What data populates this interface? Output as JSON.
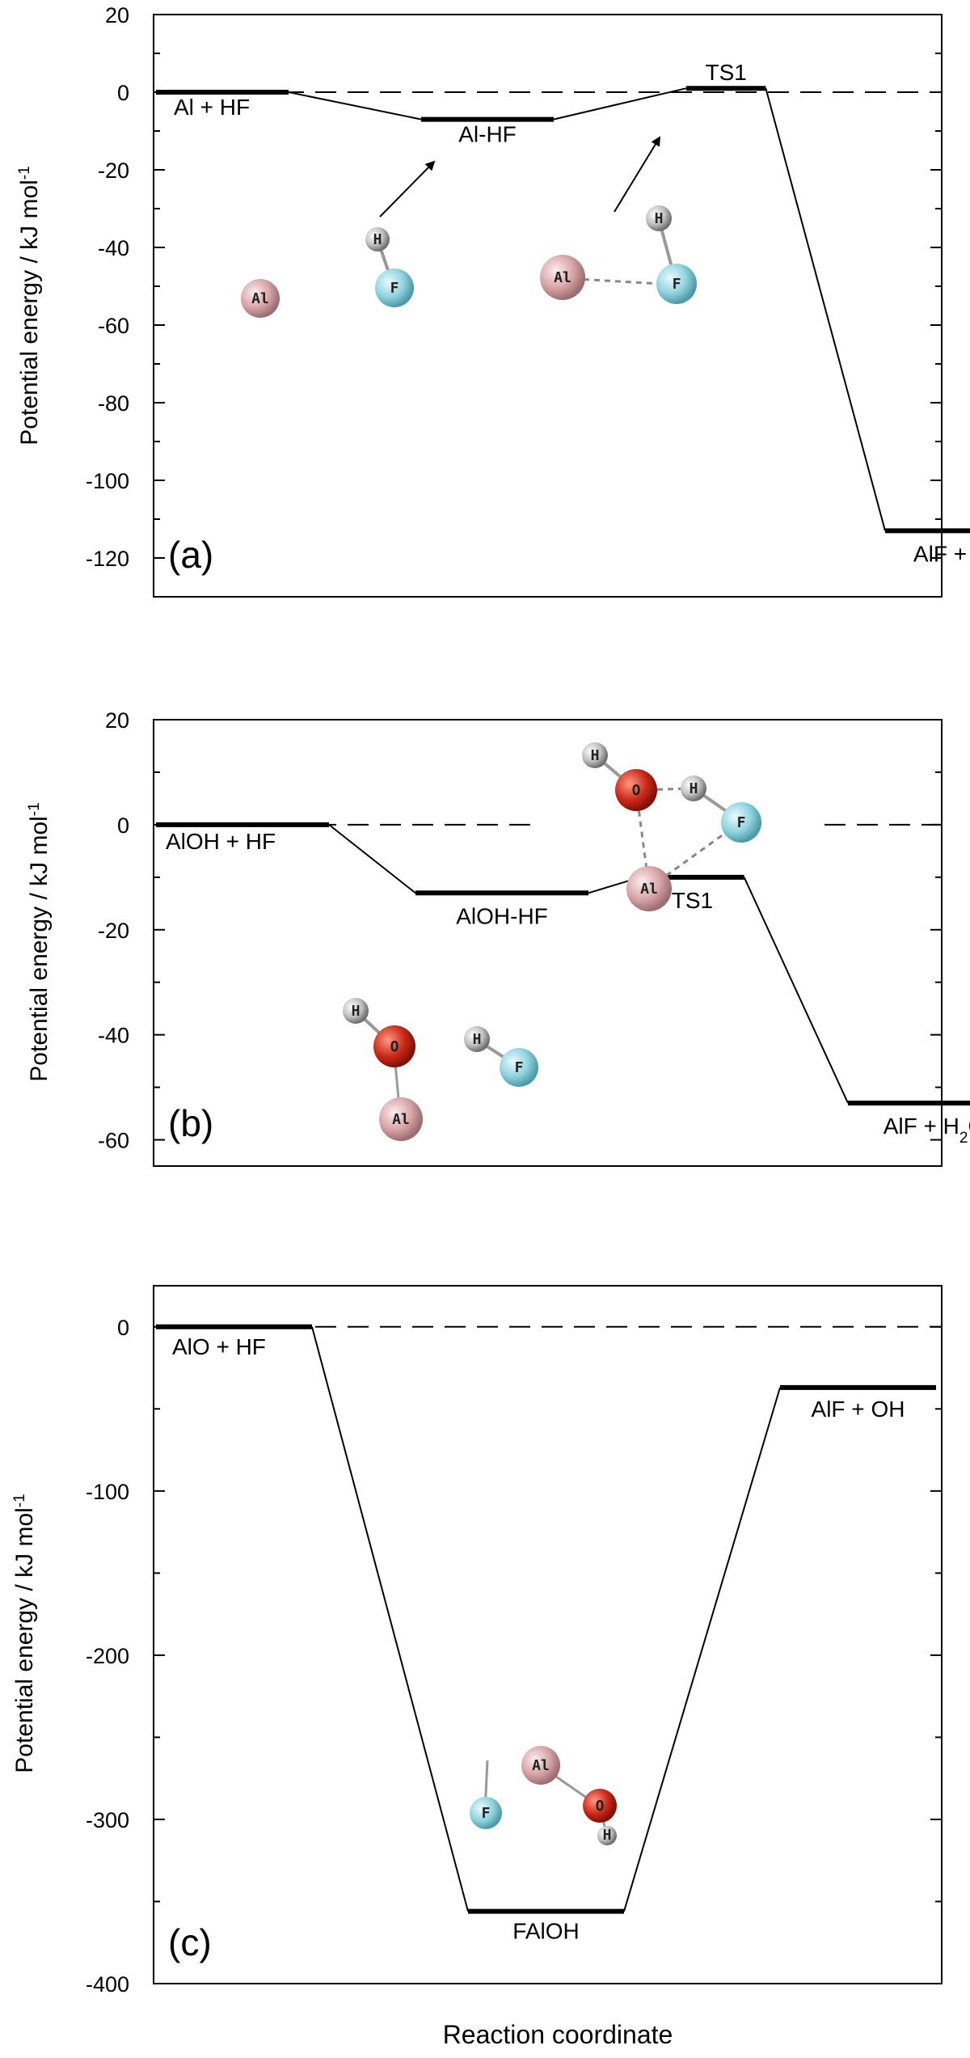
{
  "chart_data": [
    {
      "type": "line",
      "panel_label": "(a)",
      "ylabel": "Potential energy / kJ mol",
      "ylabel_superscript": "-1",
      "ylim": [
        -130,
        20
      ],
      "yticks": [
        20,
        0,
        -20,
        -40,
        -60,
        -80,
        -100,
        -120
      ],
      "reference_line": 0,
      "states": [
        {
          "label": "Al + HF",
          "energy": 0,
          "x": [
            0,
            1
          ]
        },
        {
          "label": "Al-HF",
          "energy": -7,
          "x": [
            2,
            3
          ]
        },
        {
          "label": "TS1",
          "energy": 1,
          "x": [
            4,
            4.6
          ]
        },
        {
          "label": "AlF + H",
          "energy": -113,
          "x": [
            5.5,
            6.5
          ]
        }
      ],
      "atoms": [
        {
          "el": "Al",
          "text": "Al",
          "color": "#d8a4a7"
        },
        {
          "el": "H",
          "text": "H",
          "color": "#bfbfbf"
        },
        {
          "el": "F",
          "text": "F",
          "color": "#8fd3df"
        },
        {
          "el": "Al",
          "text": "Al",
          "color": "#d8a4a7"
        },
        {
          "el": "H",
          "text": "H",
          "color": "#bfbfbf"
        },
        {
          "el": "F",
          "text": "F",
          "color": "#8fd3df"
        }
      ]
    },
    {
      "type": "line",
      "panel_label": "(b)",
      "ylabel": "Potential energy / kJ mol",
      "ylabel_superscript": "-1",
      "ylim": [
        -65,
        20
      ],
      "yticks": [
        20,
        0,
        -20,
        -40,
        -60
      ],
      "reference_line": 0,
      "states": [
        {
          "label": "AlOH + HF",
          "label_sub": "",
          "energy": 0,
          "x": [
            0,
            1
          ]
        },
        {
          "label": "AlOH-HF",
          "label_sub": "",
          "energy": -13,
          "x": [
            1.5,
            2.5
          ]
        },
        {
          "label": "TS1",
          "label_sub": "",
          "energy": -10,
          "x": [
            2.8,
            3.4
          ]
        },
        {
          "label": "AlF + H",
          "label_sub": "2",
          "label_tail": "O",
          "energy": -53,
          "x": [
            4,
            5
          ]
        }
      ],
      "atoms": [
        {
          "el": "H",
          "text": "H",
          "color": "#bfbfbf"
        },
        {
          "el": "O",
          "text": "O",
          "color": "#cc2a1a"
        },
        {
          "el": "H",
          "text": "H",
          "color": "#bfbfbf"
        },
        {
          "el": "F",
          "text": "F",
          "color": "#8fd3df"
        },
        {
          "el": "Al",
          "text": "Al",
          "color": "#d8a4a7"
        },
        {
          "el": "H",
          "text": "H",
          "color": "#bfbfbf"
        },
        {
          "el": "O",
          "text": "O",
          "color": "#cc2a1a"
        },
        {
          "el": "Al",
          "text": "Al",
          "color": "#d8a4a7"
        },
        {
          "el": "H",
          "text": "H",
          "color": "#bfbfbf"
        },
        {
          "el": "F",
          "text": "F",
          "color": "#8fd3df"
        }
      ]
    },
    {
      "type": "line",
      "panel_label": "(c)",
      "ylabel": "Potential energy / kJ mol",
      "ylabel_superscript": "-1",
      "ylim": [
        -400,
        25
      ],
      "yticks": [
        0,
        -100,
        -200,
        -300,
        -400
      ],
      "reference_line": 0,
      "states": [
        {
          "label": "AlO + HF",
          "energy": 0,
          "x": [
            0,
            1
          ]
        },
        {
          "label": "FAlOH",
          "energy": -356,
          "x": [
            2,
            3
          ]
        },
        {
          "label": "AlF + OH",
          "energy": -37,
          "x": [
            4,
            5
          ]
        }
      ],
      "atoms": [
        {
          "el": "Al",
          "text": "Al",
          "color": "#d8a4a7"
        },
        {
          "el": "F",
          "text": "F",
          "color": "#8fd3df"
        },
        {
          "el": "O",
          "text": "O",
          "color": "#cc2a1a"
        },
        {
          "el": "H",
          "text": "H",
          "color": "#bfbfbf"
        }
      ]
    }
  ],
  "xlabel": "Reaction coordinate"
}
